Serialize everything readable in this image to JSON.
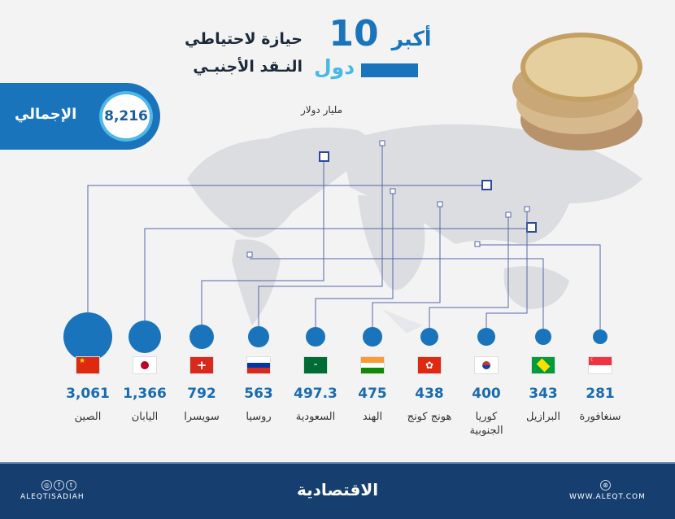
{
  "title": {
    "line1_word": "أكبر",
    "number": "10",
    "line1_rest": "حيازة لاحتياطي",
    "line2_word": "دول",
    "line2_rest": "النـقد الأجنبـي"
  },
  "unit": "مليار دولار",
  "total": {
    "label": "الإجمالي",
    "value": "8,216"
  },
  "colors": {
    "accent": "#1a74bb",
    "light_accent": "#48b8e8",
    "footer": "#163f70"
  },
  "chart_data": {
    "type": "bubble",
    "unit": "مليار دولار",
    "categories": [
      "الصين",
      "اليابان",
      "سويسرا",
      "روسيا",
      "السعودية",
      "الهند",
      "هونج كونج",
      "كوريا الجنوبية",
      "البرازيل",
      "سنغافورة"
    ],
    "values": [
      3061,
      1366,
      792,
      563,
      497.3,
      475,
      438,
      400,
      343,
      281
    ],
    "value_labels": [
      "3,061",
      "1,366",
      "792",
      "563",
      "497.3",
      "475",
      "438",
      "400",
      "343",
      "281"
    ],
    "flags": [
      "china-flag",
      "japan-flag",
      "switzerland-flag",
      "russia-flag",
      "saudi-flag",
      "india-flag",
      "hong-kong-flag",
      "south-korea-flag",
      "brazil-flag",
      "singapore-flag"
    ]
  },
  "footer": {
    "brand": "الاقتصادية",
    "social": "ALEQTISADIAH",
    "website": "WWW.ALEQT.COM",
    "icons": [
      "instagram-icon",
      "facebook-icon",
      "twitter-icon",
      "web-icon"
    ]
  }
}
